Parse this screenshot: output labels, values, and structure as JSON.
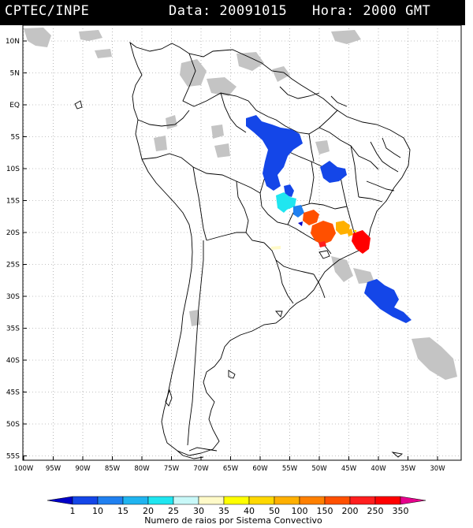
{
  "header": {
    "source": "CPTEC/INPE",
    "date_label": "Data: 20091015",
    "time_label": "Hora: 2000 GMT"
  },
  "map": {
    "lat_labels": [
      "10N",
      "5N",
      "EQ",
      "5S",
      "10S",
      "15S",
      "20S",
      "25S",
      "30S",
      "35S",
      "40S",
      "45S",
      "50S",
      "55S"
    ],
    "lon_labels": [
      "100W",
      "95W",
      "90W",
      "85W",
      "80W",
      "75W",
      "70W",
      "65W",
      "60W",
      "55W",
      "50W",
      "45W",
      "40W",
      "35W",
      "30W"
    ]
  },
  "legend": {
    "title": "Numero de raios por Sistema Convectivo",
    "values": [
      "1",
      "10",
      "15",
      "20",
      "25",
      "30",
      "35",
      "40",
      "50",
      "100",
      "150",
      "200",
      "250",
      "350"
    ],
    "colors": [
      "#0000c8",
      "#1446e8",
      "#2080f0",
      "#20b4f0",
      "#20e6f0",
      "#c8f8f8",
      "#fffac8",
      "#ffff00",
      "#ffd800",
      "#ffb000",
      "#ff8000",
      "#ff5000",
      "#ff1e1e",
      "#ff0000",
      "#e6008c"
    ]
  }
}
